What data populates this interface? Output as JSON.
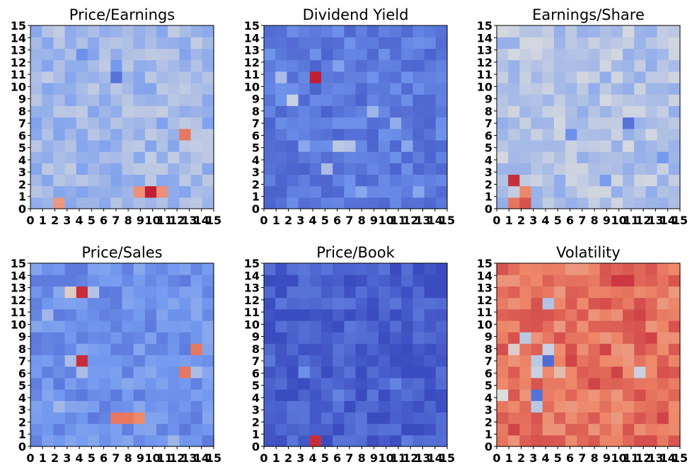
{
  "colors": {
    "cmap": "coolwarm",
    "low": "#3b4cc0",
    "mid": "#dddddd",
    "high": "#b40426"
  },
  "chart_data": [
    {
      "type": "heatmap",
      "title": "Price/Earnings",
      "x_ticks": [
        "0",
        "1",
        "2",
        "3",
        "4",
        "5",
        "6",
        "7",
        "8",
        "9",
        "10",
        "11",
        "12",
        "13",
        "14",
        "15"
      ],
      "y_ticks": [
        "0",
        "1",
        "2",
        "3",
        "4",
        "5",
        "6",
        "7",
        "8",
        "9",
        "10",
        "11",
        "12",
        "13",
        "14",
        "15"
      ],
      "xlim": [
        0,
        15
      ],
      "ylim": [
        0,
        15
      ],
      "value_range": [
        0,
        1
      ],
      "base_value": 0.36,
      "cells": [
        {
          "x": 10,
          "y": 1,
          "value": 0.95
        },
        {
          "x": 9,
          "y": 1,
          "value": 0.72
        },
        {
          "x": 11,
          "y": 1,
          "value": 0.72
        },
        {
          "x": 13,
          "y": 6,
          "value": 0.78
        },
        {
          "x": 2,
          "y": 0,
          "value": 0.7
        },
        {
          "x": 7,
          "y": 11,
          "value": 0.12
        },
        {
          "x": 4,
          "y": 13,
          "value": 0.22
        },
        {
          "x": 7,
          "y": 12,
          "value": 0.25
        },
        {
          "x": 0,
          "y": 7,
          "value": 0.28
        }
      ]
    },
    {
      "type": "heatmap",
      "title": "Dividend Yield",
      "x_ticks": [
        "0",
        "1",
        "2",
        "3",
        "4",
        "5",
        "6",
        "7",
        "8",
        "9",
        "10",
        "11",
        "12",
        "13",
        "14",
        "15"
      ],
      "y_ticks": [
        "0",
        "1",
        "2",
        "3",
        "4",
        "5",
        "6",
        "7",
        "8",
        "9",
        "10",
        "11",
        "12",
        "13",
        "14",
        "15"
      ],
      "xlim": [
        0,
        15
      ],
      "ylim": [
        0,
        15
      ],
      "value_range": [
        0,
        1
      ],
      "base_value": 0.15,
      "cells": [
        {
          "x": 4,
          "y": 11,
          "value": 0.95
        },
        {
          "x": 2,
          "y": 9,
          "value": 0.45
        },
        {
          "x": 1,
          "y": 11,
          "value": 0.38
        },
        {
          "x": 6,
          "y": 5,
          "value": 0.42
        },
        {
          "x": 7,
          "y": 5,
          "value": 0.4
        },
        {
          "x": 5,
          "y": 3,
          "value": 0.38
        },
        {
          "x": 9,
          "y": 8,
          "value": 0.35
        },
        {
          "x": 11,
          "y": 7,
          "value": 0.32
        },
        {
          "x": 3,
          "y": 5,
          "value": 0.3
        },
        {
          "x": 12,
          "y": 5,
          "value": 0.3
        },
        {
          "x": 13,
          "y": 1,
          "value": 0.3
        },
        {
          "x": 6,
          "y": 12,
          "value": 0.28
        },
        {
          "x": 8,
          "y": 1,
          "value": 0.3
        }
      ]
    },
    {
      "type": "heatmap",
      "title": "Earnings/Share",
      "x_ticks": [
        "0",
        "1",
        "2",
        "3",
        "4",
        "5",
        "6",
        "7",
        "8",
        "9",
        "10",
        "11",
        "12",
        "13",
        "14",
        "15"
      ],
      "y_ticks": [
        "0",
        "1",
        "2",
        "3",
        "4",
        "5",
        "6",
        "7",
        "8",
        "9",
        "10",
        "11",
        "12",
        "13",
        "14",
        "15"
      ],
      "xlim": [
        0,
        15
      ],
      "ylim": [
        0,
        15
      ],
      "value_range": [
        0,
        1
      ],
      "base_value": 0.4,
      "cells": [
        {
          "x": 1,
          "y": 2,
          "value": 0.92
        },
        {
          "x": 2,
          "y": 0,
          "value": 0.85
        },
        {
          "x": 1,
          "y": 0,
          "value": 0.78
        },
        {
          "x": 2,
          "y": 1,
          "value": 0.75
        },
        {
          "x": 11,
          "y": 7,
          "value": 0.12
        },
        {
          "x": 6,
          "y": 6,
          "value": 0.22
        },
        {
          "x": 9,
          "y": 2,
          "value": 0.26
        },
        {
          "x": 14,
          "y": 4,
          "value": 0.25
        }
      ]
    },
    {
      "type": "heatmap",
      "title": "Price/Sales",
      "x_ticks": [
        "0",
        "1",
        "2",
        "3",
        "4",
        "5",
        "6",
        "7",
        "8",
        "9",
        "10",
        "11",
        "12",
        "13",
        "14",
        "15"
      ],
      "y_ticks": [
        "0",
        "1",
        "2",
        "3",
        "4",
        "5",
        "6",
        "7",
        "8",
        "9",
        "10",
        "11",
        "12",
        "13",
        "14",
        "15"
      ],
      "xlim": [
        0,
        15
      ],
      "ylim": [
        0,
        15
      ],
      "value_range": [
        0,
        1
      ],
      "base_value": 0.22,
      "cells": [
        {
          "x": 4,
          "y": 13,
          "value": 0.92
        },
        {
          "x": 4,
          "y": 7,
          "value": 0.92
        },
        {
          "x": 7,
          "y": 2,
          "value": 0.78
        },
        {
          "x": 8,
          "y": 2,
          "value": 0.78
        },
        {
          "x": 9,
          "y": 2,
          "value": 0.74
        },
        {
          "x": 13,
          "y": 6,
          "value": 0.78
        },
        {
          "x": 14,
          "y": 8,
          "value": 0.78
        },
        {
          "x": 3,
          "y": 13,
          "value": 0.55
        },
        {
          "x": 5,
          "y": 13,
          "value": 0.4
        },
        {
          "x": 4,
          "y": 6,
          "value": 0.38
        },
        {
          "x": 3,
          "y": 7,
          "value": 0.38
        },
        {
          "x": 1,
          "y": 11,
          "value": 0.36
        },
        {
          "x": 2,
          "y": 3,
          "value": 0.36
        },
        {
          "x": 14,
          "y": 6,
          "value": 0.38
        },
        {
          "x": 12,
          "y": 0,
          "value": 0.35
        }
      ]
    },
    {
      "type": "heatmap",
      "title": "Price/Book",
      "x_ticks": [
        "0",
        "1",
        "2",
        "3",
        "4",
        "5",
        "6",
        "7",
        "8",
        "9",
        "10",
        "11",
        "12",
        "13",
        "14",
        "15"
      ],
      "y_ticks": [
        "0",
        "1",
        "2",
        "3",
        "4",
        "5",
        "6",
        "7",
        "8",
        "9",
        "10",
        "11",
        "12",
        "13",
        "14",
        "15"
      ],
      "xlim": [
        0,
        15
      ],
      "ylim": [
        0,
        15
      ],
      "value_range": [
        0,
        1
      ],
      "base_value": 0.06,
      "cells": [
        {
          "x": 4,
          "y": 0,
          "value": 0.92
        },
        {
          "x": 3,
          "y": 6,
          "value": 0.22
        },
        {
          "x": 6,
          "y": 4,
          "value": 0.18
        },
        {
          "x": 11,
          "y": 5,
          "value": 0.18
        },
        {
          "x": 12,
          "y": 0,
          "value": 0.16
        }
      ]
    },
    {
      "type": "heatmap",
      "title": "Volatility",
      "x_ticks": [
        "0",
        "1",
        "2",
        "3",
        "4",
        "5",
        "6",
        "7",
        "8",
        "9",
        "10",
        "11",
        "12",
        "13",
        "14",
        "15"
      ],
      "y_ticks": [
        "0",
        "1",
        "2",
        "3",
        "4",
        "5",
        "6",
        "7",
        "8",
        "9",
        "10",
        "11",
        "12",
        "13",
        "14",
        "15"
      ],
      "xlim": [
        0,
        15
      ],
      "ylim": [
        0,
        15
      ],
      "value_range": [
        0,
        1
      ],
      "base_value": 0.78,
      "cells": [
        {
          "x": 4,
          "y": 7,
          "value": 0.1
        },
        {
          "x": 3,
          "y": 4,
          "value": 0.12
        },
        {
          "x": 3,
          "y": 3,
          "value": 0.42
        },
        {
          "x": 3,
          "y": 7,
          "value": 0.42
        },
        {
          "x": 3,
          "y": 6,
          "value": 0.45
        },
        {
          "x": 4,
          "y": 8,
          "value": 0.45
        },
        {
          "x": 4,
          "y": 12,
          "value": 0.4
        },
        {
          "x": 2,
          "y": 9,
          "value": 0.42
        },
        {
          "x": 0,
          "y": 4,
          "value": 0.5
        },
        {
          "x": 12,
          "y": 6,
          "value": 0.45
        },
        {
          "x": 1,
          "y": 8,
          "value": 0.55
        },
        {
          "x": 5,
          "y": 6,
          "value": 0.6
        },
        {
          "x": 10,
          "y": 14,
          "value": 0.9
        },
        {
          "x": 11,
          "y": 14,
          "value": 0.9
        },
        {
          "x": 12,
          "y": 11,
          "value": 0.88
        },
        {
          "x": 6,
          "y": 7,
          "value": 0.88
        },
        {
          "x": 10,
          "y": 6,
          "value": 0.88
        },
        {
          "x": 14,
          "y": 2,
          "value": 0.88
        },
        {
          "x": 1,
          "y": 1,
          "value": 0.88
        },
        {
          "x": 8,
          "y": 5,
          "value": 0.88
        },
        {
          "x": 9,
          "y": 8,
          "value": 0.88
        },
        {
          "x": 13,
          "y": 9,
          "value": 0.88
        }
      ]
    }
  ]
}
